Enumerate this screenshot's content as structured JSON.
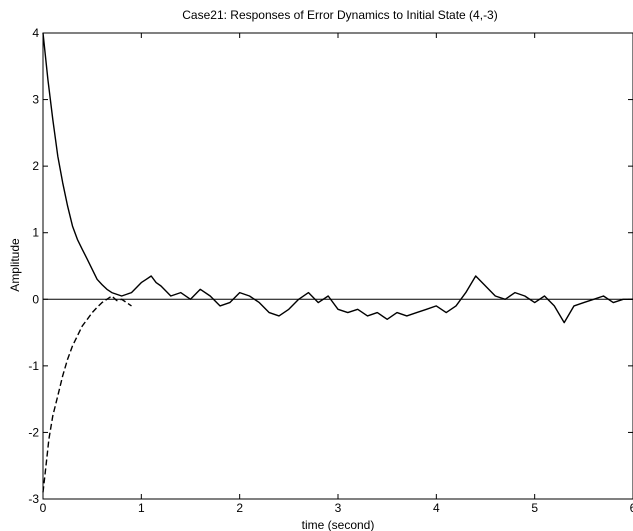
{
  "chart_data": {
    "type": "line",
    "title": "Case21: Responses of Error Dynamics to Initial State (4,-3)",
    "xlabel": "time (second)",
    "ylabel": "Amplitude",
    "xlim": [
      0,
      6
    ],
    "ylim": [
      -3,
      4
    ],
    "xticks": [
      0,
      1,
      2,
      3,
      4,
      5,
      6
    ],
    "xtick_labels": [
      "0",
      "1",
      "2",
      "3",
      "4",
      "5",
      "6"
    ],
    "yticks": [
      -3,
      -2,
      -1,
      0,
      1,
      2,
      3,
      4
    ],
    "ytick_labels": [
      "-3",
      "-2",
      "-1",
      "0",
      "1",
      "2",
      "3",
      "4"
    ],
    "grid": false,
    "legend": "none",
    "series": [
      {
        "style": "solid",
        "x": [
          0.0,
          0.05,
          0.1,
          0.15,
          0.2,
          0.25,
          0.3,
          0.35,
          0.4,
          0.45,
          0.5,
          0.55,
          0.6,
          0.65,
          0.7,
          0.8,
          0.9,
          1.0,
          1.05,
          1.1,
          1.15,
          1.2,
          1.3,
          1.4,
          1.5,
          1.6,
          1.7,
          1.8,
          1.9,
          2.0,
          2.1,
          2.2,
          2.3,
          2.4,
          2.5,
          2.6,
          2.7,
          2.8,
          2.9,
          3.0,
          3.1,
          3.2,
          3.3,
          3.4,
          3.5,
          3.6,
          3.7,
          3.8,
          3.9,
          4.0,
          4.1,
          4.2,
          4.3,
          4.4,
          4.5,
          4.6,
          4.7,
          4.8,
          4.9,
          5.0,
          5.1,
          5.2,
          5.3,
          5.4,
          5.5,
          5.6,
          5.7,
          5.8,
          5.9,
          6.0
        ],
        "y": [
          4.0,
          3.3,
          2.7,
          2.15,
          1.75,
          1.4,
          1.1,
          0.9,
          0.75,
          0.6,
          0.45,
          0.3,
          0.22,
          0.15,
          0.1,
          0.05,
          0.1,
          0.25,
          0.3,
          0.35,
          0.25,
          0.2,
          0.05,
          0.1,
          0.0,
          0.15,
          0.05,
          -0.1,
          -0.05,
          0.1,
          0.05,
          -0.05,
          -0.2,
          -0.25,
          -0.15,
          0.0,
          0.1,
          -0.05,
          0.05,
          -0.15,
          -0.2,
          -0.15,
          -0.25,
          -0.2,
          -0.3,
          -0.2,
          -0.25,
          -0.2,
          -0.15,
          -0.1,
          -0.2,
          -0.1,
          0.1,
          0.35,
          0.2,
          0.05,
          0.0,
          0.1,
          0.05,
          -0.05,
          0.05,
          -0.1,
          -0.35,
          -0.1,
          -0.05,
          0.0,
          0.05,
          -0.05,
          0.0,
          0.0
        ]
      },
      {
        "style": "dashed",
        "x": [
          0.0,
          0.03,
          0.06,
          0.1,
          0.15,
          0.2,
          0.25,
          0.3,
          0.35,
          0.4,
          0.45,
          0.5,
          0.55,
          0.6,
          0.65,
          0.7,
          0.75,
          0.8,
          0.85,
          0.9
        ],
        "y": [
          -2.9,
          -2.5,
          -2.1,
          -1.75,
          -1.45,
          -1.15,
          -0.9,
          -0.7,
          -0.55,
          -0.4,
          -0.3,
          -0.2,
          -0.12,
          -0.05,
          0.0,
          0.05,
          -0.02,
          0.0,
          -0.05,
          -0.1
        ]
      }
    ]
  }
}
